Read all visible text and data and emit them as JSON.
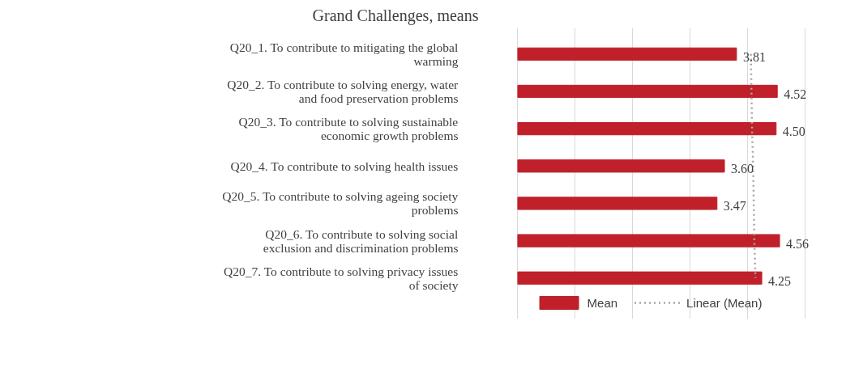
{
  "chart_data": {
    "type": "bar",
    "orientation": "horizontal",
    "title": "Grand Challenges, means",
    "categories": [
      "Q20_1. To contribute to mitigating the global warming",
      "Q20_2. To contribute to solving energy, water and food preservation problems",
      "Q20_3. To contribute to solving sustainable economic growth problems",
      "Q20_4. To contribute to solving health issues",
      "Q20_5. To contribute to solving ageing society problems",
      "Q20_6. To contribute to solving social exclusion and discrimination problems",
      "Q20_7. To contribute to solving privacy issues of society"
    ],
    "series": [
      {
        "name": "Mean",
        "color": "#c0202a",
        "values": [
          3.81,
          4.52,
          4.5,
          3.6,
          3.47,
          4.56,
          4.25
        ],
        "value_labels": [
          "3.81",
          "4.52",
          "4.50",
          "3.60",
          "3.47",
          "4.56",
          "4.25"
        ]
      },
      {
        "name": "Linear (Mean)",
        "type": "line",
        "color": "#a6a6a6",
        "line_style": "dotted",
        "values": [
          4.06,
          4.07,
          4.08,
          4.1,
          4.11,
          4.12,
          4.14
        ]
      }
    ],
    "grid": "x",
    "legend": "bottom",
    "tick_labels": "y"
  }
}
